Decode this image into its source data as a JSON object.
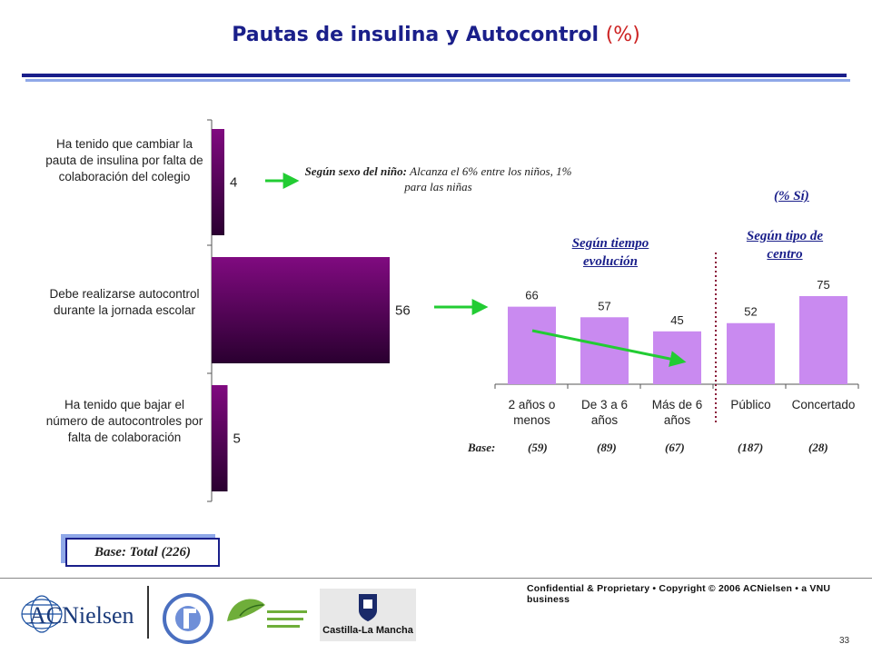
{
  "title": {
    "main": "Pautas de insulina y Autocontrol",
    "suffix": "(%)"
  },
  "left_chart": {
    "categories": [
      "Ha tenido que cambiar la pauta de insulina por falta de colaboración del colegio",
      "Debe realizarse autocontrol durante la jornada escolar",
      "Ha tenido que bajar el número de autocontroles por falta de colaboración"
    ],
    "labels": [
      "4",
      "56",
      "5"
    ]
  },
  "note": {
    "bold": "Según sexo del niño:",
    "italic": "Alcanza el 6% entre los niños, 1% para las niñas"
  },
  "right_chart": {
    "pct_si": "(% Sí)",
    "group_tiempo": "Según tiempo evolución",
    "group_centro": "Según tipo de centro",
    "categories": [
      "2 años o menos",
      "De 3 a 6 años",
      "Más de 6 años",
      "Público",
      "Concertado"
    ],
    "labels": [
      "66",
      "57",
      "45",
      "52",
      "75"
    ],
    "base_label": "Base:",
    "bases": [
      "(59)",
      "(89)",
      "(67)",
      "(187)",
      "(28)"
    ]
  },
  "base_total": "Base: Total (226)",
  "footer": {
    "confidential": "Confidential & Proprietary • Copyright © 2006 ACNielsen • a VNU business",
    "page": "33",
    "logo_acnielsen": "ACNielsen",
    "logo_clm": "Castilla-La Mancha"
  },
  "colors": {
    "bar_purple": "#7a0a7a",
    "bar_lilac": "#cc88ee",
    "accent_blue": "#1a1f8a",
    "arrow_green": "#22cc33"
  },
  "chart_data": [
    {
      "type": "bar",
      "orientation": "horizontal",
      "categories": [
        "Ha tenido que cambiar la pauta de insulina por falta de colaboración del colegio",
        "Debe realizarse autocontrol durante la jornada escolar",
        "Ha tenido que bajar el número de autocontroles por falta de colaboración"
      ],
      "values": [
        4,
        56,
        5
      ]
    },
    {
      "type": "bar",
      "categories": [
        "2 años o menos",
        "De 3 a 6 años",
        "Más de 6 años",
        "Público",
        "Concertado"
      ],
      "values": [
        66,
        57,
        45,
        52,
        75
      ]
    }
  ]
}
